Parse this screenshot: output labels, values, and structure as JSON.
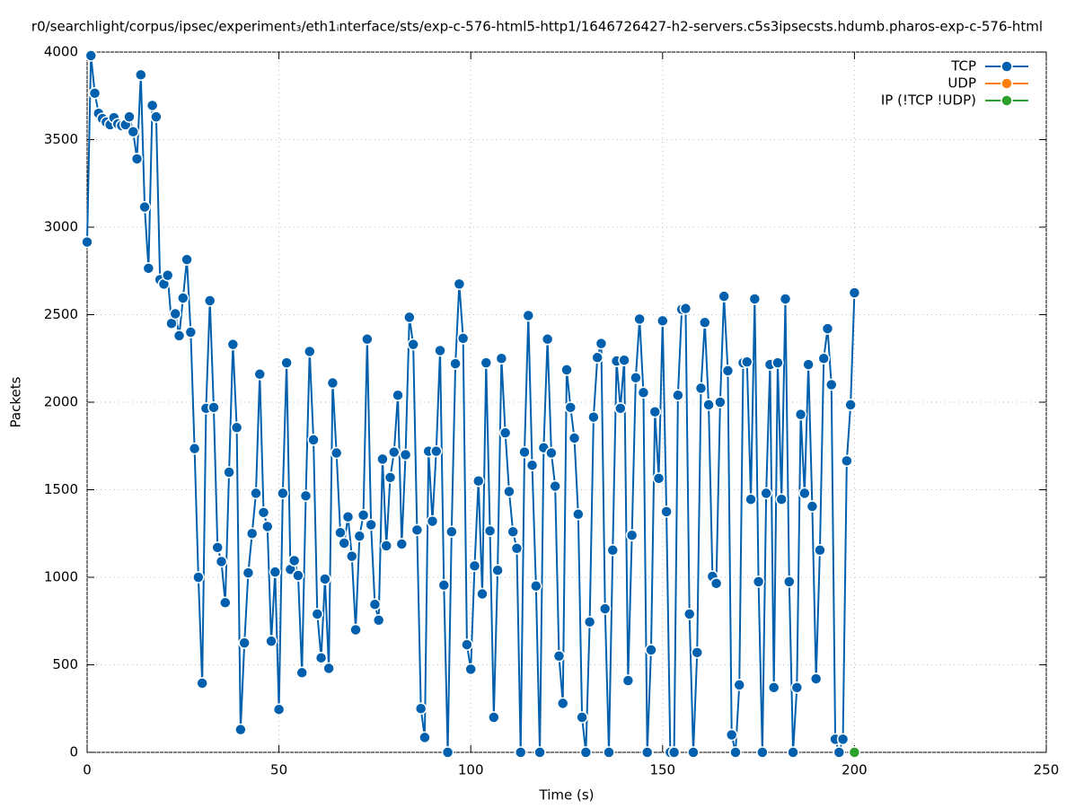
{
  "chart_data": {
    "type": "line",
    "title": "r0/searchlight/corpus/ipsec/experiment₃/eth1ᵢnterface/sts/exp-c-576-html5-http1/1646726427-h2-servers.c5s3ipsecsts.hdumb.pharos-exp-c-576-html",
    "x_label": "Time (s)",
    "y_label": "Packets",
    "xlim": [
      0,
      250
    ],
    "xticks": [
      0,
      50,
      100,
      150,
      200,
      250
    ],
    "ylim": [
      0,
      4000
    ],
    "yticks": [
      0,
      500,
      1000,
      1500,
      2000,
      2500,
      3000,
      3500,
      4000
    ],
    "grid": true,
    "legend": "top-right",
    "series": [
      {
        "name": "TCP",
        "color": "#0060ad",
        "x": [
          0,
          1,
          2,
          3,
          4,
          5,
          6,
          7,
          8,
          9,
          10,
          11,
          12,
          13,
          14,
          15,
          16,
          17,
          18,
          19,
          20,
          21,
          22,
          23,
          24,
          25,
          26,
          27,
          28,
          29,
          30,
          31,
          32,
          33,
          34,
          35,
          36,
          37,
          38,
          39,
          40,
          41,
          42,
          43,
          44,
          45,
          46,
          47,
          48,
          49,
          50,
          51,
          52,
          53,
          54,
          55,
          56,
          57,
          58,
          59,
          60,
          61,
          62,
          63,
          64,
          65,
          66,
          67,
          68,
          69,
          70,
          71,
          72,
          73,
          74,
          75,
          76,
          77,
          78,
          79,
          80,
          81,
          82,
          83,
          84,
          85,
          86,
          87,
          88,
          89,
          90,
          91,
          92,
          93,
          94,
          95,
          96,
          97,
          98,
          99,
          100,
          101,
          102,
          103,
          104,
          105,
          106,
          107,
          108,
          109,
          110,
          111,
          112,
          113,
          114,
          115,
          116,
          117,
          118,
          119,
          120,
          121,
          122,
          123,
          124,
          125,
          126,
          127,
          128,
          129,
          130,
          131,
          132,
          133,
          134,
          135,
          136,
          137,
          138,
          139,
          140,
          141,
          142,
          143,
          144,
          145,
          146,
          147,
          148,
          149,
          150,
          151,
          152,
          153,
          154,
          155,
          156,
          157,
          158,
          159,
          160,
          161,
          162,
          163,
          164,
          165,
          166,
          167,
          168,
          169,
          170,
          171,
          172,
          173,
          174,
          175,
          176,
          177,
          178,
          179,
          180,
          181,
          182,
          183,
          184,
          185,
          186,
          187,
          188,
          189,
          190,
          191,
          192,
          193,
          194,
          195,
          196,
          197,
          198,
          199,
          200
        ],
        "values": [
          2915,
          3980,
          3765,
          3650,
          3620,
          3600,
          3585,
          3625,
          3590,
          3580,
          3585,
          3630,
          3545,
          3390,
          3870,
          3115,
          2765,
          3695,
          3630,
          2700,
          2675,
          2725,
          2450,
          2505,
          2380,
          2595,
          2815,
          2400,
          1735,
          1000,
          395,
          1965,
          2580,
          1970,
          1170,
          1090,
          855,
          1600,
          2330,
          1855,
          130,
          625,
          1025,
          1250,
          1480,
          2160,
          1370,
          1290,
          635,
          1030,
          245,
          1480,
          2225,
          1045,
          1095,
          1010,
          455,
          1465,
          2290,
          1785,
          790,
          540,
          990,
          480,
          2110,
          1710,
          1255,
          1195,
          1345,
          1120,
          700,
          1235,
          1355,
          2360,
          1300,
          845,
          755,
          1675,
          1180,
          1570,
          1715,
          2040,
          1190,
          1700,
          2485,
          2330,
          1270,
          250,
          85,
          1720,
          1320,
          1720,
          2295,
          955,
          0,
          1260,
          2220,
          2675,
          2365,
          615,
          475,
          1065,
          1550,
          905,
          2225,
          1265,
          200,
          1040,
          2250,
          1825,
          1490,
          1260,
          1165,
          0,
          1715,
          2495,
          1640,
          950,
          0,
          1740,
          2360,
          1710,
          1520,
          550,
          280,
          2185,
          1970,
          1795,
          1360,
          200,
          0,
          745,
          1915,
          2255,
          2335,
          820,
          0,
          1155,
          2235,
          1965,
          2240,
          410,
          1240,
          2140,
          2475,
          2055,
          0,
          585,
          1945,
          1565,
          2465,
          1375,
          0,
          0,
          2040,
          2530,
          2535,
          790,
          0,
          570,
          2080,
          2455,
          1985,
          1005,
          965,
          2000,
          2605,
          2180,
          100,
          0,
          385,
          2225,
          2230,
          1445,
          2590,
          975,
          0,
          1480,
          2215,
          370,
          2225,
          1445,
          2590,
          975,
          0,
          370,
          1930,
          1480,
          2215,
          1405,
          420,
          1155,
          2250,
          2420,
          2100,
          75,
          0,
          75,
          1665,
          1985,
          2625
        ]
      },
      {
        "name": "UDP",
        "color": "#ff7f0e",
        "x": [
          200
        ],
        "values": [
          0
        ]
      },
      {
        "name": "IP (!TCP  !UDP)",
        "color": "#2ca02c",
        "x": [
          200
        ],
        "values": [
          0
        ]
      }
    ]
  }
}
